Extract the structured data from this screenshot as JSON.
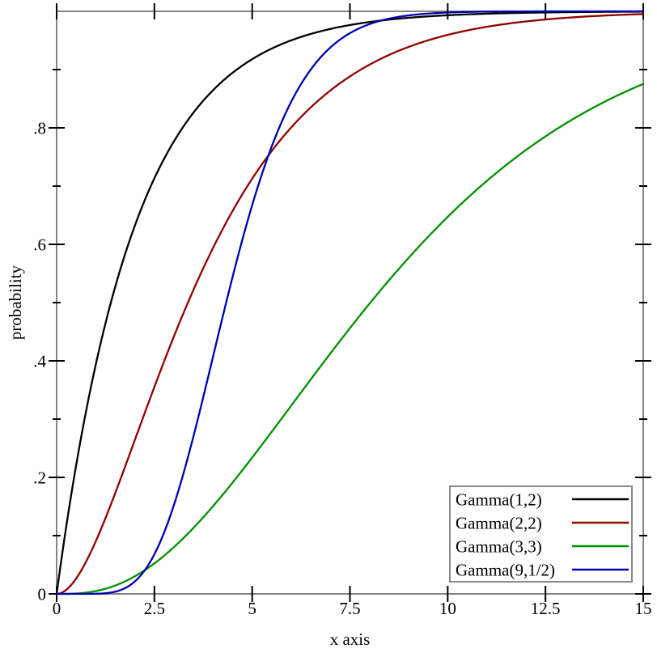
{
  "chart_data": {
    "type": "line",
    "title": "",
    "xlabel": "x axis",
    "ylabel": "probability",
    "xlim": [
      0,
      15
    ],
    "ylim": [
      0,
      1
    ],
    "x_major_ticks": [
      0,
      2.5,
      5,
      7.5,
      10,
      12.5,
      15
    ],
    "x_tick_labels": [
      "0",
      "2.5",
      "5",
      "7.5",
      "10",
      "12.5",
      "15"
    ],
    "y_major_ticks": [
      0,
      0.2,
      0.4,
      0.6,
      0.8
    ],
    "y_tick_labels": [
      "0",
      ".2",
      ".4",
      ".6",
      ".8"
    ],
    "y_minor_ticks": [
      0.1,
      0.3,
      0.5,
      0.7,
      0.9
    ],
    "grid": false,
    "legend_position": "bottom-right",
    "series": [
      {
        "name": "Gamma(1,2)",
        "curve": "gamma-cdf",
        "shape": 1,
        "scale": 2,
        "color": "#000000"
      },
      {
        "name": "Gamma(2,2)",
        "curve": "gamma-cdf",
        "shape": 2,
        "scale": 2,
        "color": "#900000"
      },
      {
        "name": "Gamma(3,3)",
        "curve": "gamma-cdf",
        "shape": 3,
        "scale": 3,
        "color": "#009000"
      },
      {
        "name": "Gamma(9,1/2)",
        "curve": "gamma-cdf",
        "shape": 9,
        "scale": 0.5,
        "color": "#0000b0"
      }
    ],
    "frame_color": "#848484",
    "legend_border_color": "#8a8a8a",
    "tick_color": "#000000",
    "background": "#ffffff"
  }
}
